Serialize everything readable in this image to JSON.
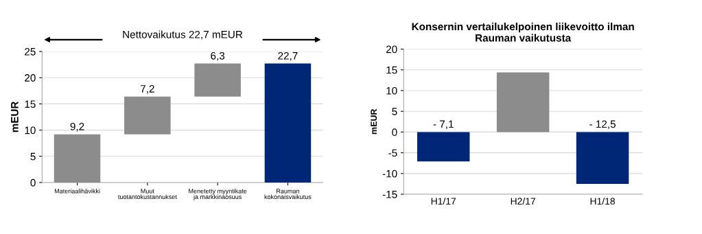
{
  "chart_data": [
    {
      "type": "bar",
      "title": "Nettovaikutus 22,7 mEUR",
      "ylabel": "mEUR",
      "categories": [
        "Materiaalihävikki",
        "Muut\ntuotantokustannukset",
        "Menetetty myyntikate\nja markkinaosuus",
        "Rauman\nkokonaisvaikutus"
      ],
      "values": [
        9.2,
        7.2,
        6.3,
        22.7
      ],
      "base": [
        0,
        9.2,
        16.4,
        0
      ],
      "colors": [
        "#8c8c8c",
        "#8c8c8c",
        "#8c8c8c",
        "#002776"
      ],
      "value_labels": [
        "9,2",
        "7,2",
        "6,3",
        "22,7"
      ],
      "ylim": [
        0,
        25
      ],
      "yticks": [
        0,
        5,
        10,
        15,
        20,
        25
      ],
      "grid": "y"
    },
    {
      "type": "bar",
      "title": "Konsernin vertailukelpoinen liikevoitto ilman\nRauman vaikutusta",
      "ylabel": "mEUR",
      "categories": [
        "H1/17",
        "H2/17",
        "H1/18"
      ],
      "values": [
        -7.1,
        14.4,
        -12.5
      ],
      "colors": [
        "#002776",
        "#8c8c8c",
        "#002776"
      ],
      "value_labels": [
        "- 7,1",
        null,
        "- 12,5"
      ],
      "ylim": [
        -15,
        20
      ],
      "yticks": [
        -15,
        -10,
        -5,
        0,
        5,
        10,
        15,
        20
      ],
      "grid": "y"
    }
  ]
}
